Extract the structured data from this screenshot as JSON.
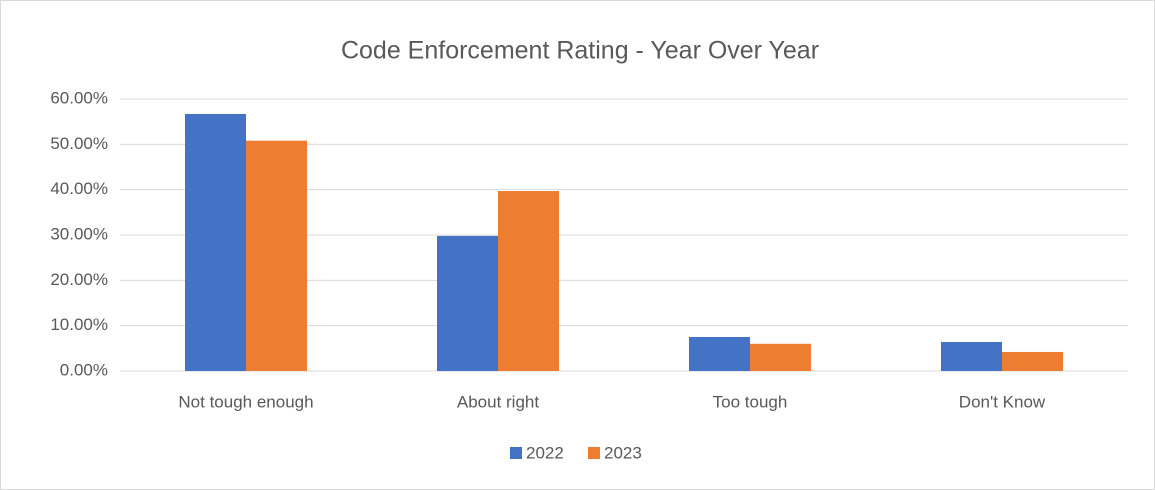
{
  "chart_data": {
    "type": "bar",
    "title": "Code Enforcement Rating - Year Over Year",
    "categories": [
      "Not tough enough",
      "About right",
      "Too tough",
      "Don't Know"
    ],
    "series": [
      {
        "name": "2022",
        "color": "#4472c4",
        "values": [
          56.7,
          29.8,
          7.5,
          6.4
        ]
      },
      {
        "name": "2023",
        "color": "#ed7d31",
        "values": [
          50.8,
          39.7,
          6.0,
          4.2
        ]
      }
    ],
    "ylim": [
      0,
      60
    ],
    "yticks": [
      {
        "value": 0,
        "label": "0.00%"
      },
      {
        "value": 10,
        "label": "10.00%"
      },
      {
        "value": 20,
        "label": "20.00%"
      },
      {
        "value": 30,
        "label": "30.00%"
      },
      {
        "value": 40,
        "label": "40.00%"
      },
      {
        "value": 50,
        "label": "50.00%"
      },
      {
        "value": 60,
        "label": "60.00%"
      }
    ],
    "grid": true,
    "legend": "bottom"
  }
}
